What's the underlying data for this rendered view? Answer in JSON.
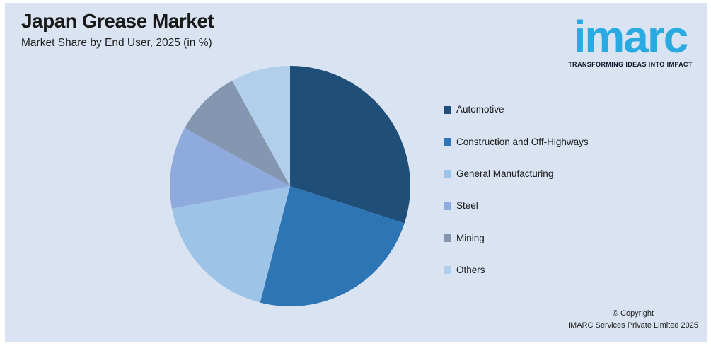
{
  "header": {
    "title": "Japan Grease Market",
    "subtitle": "Market Share by End User, 2025 (in %)"
  },
  "logo": {
    "text": "imarc",
    "tagline": "TRANSFORMING IDEAS INTO IMPACT",
    "brand_color": "#29ABE2"
  },
  "footer": {
    "copyright_line1": "© Copyright",
    "copyright_line2": "IMARC Services Private Limited 2025"
  },
  "colors": {
    "background": "#DAE3F2",
    "frame": "#FFFFFF",
    "text": "#1A1A1A"
  },
  "chart_data": {
    "type": "pie",
    "title": "Japan Grease Market",
    "subtitle": "Market Share by End User, 2025 (in %)",
    "unit": "%",
    "start_angle_deg": 0,
    "direction": "clockwise",
    "legend_position": "right",
    "slices": [
      {
        "label": "Automotive",
        "value": 30,
        "color": "#1F4E79"
      },
      {
        "label": "Construction and Off-Highways",
        "value": 24,
        "color": "#2E75B6"
      },
      {
        "label": "General Manufacturing",
        "value": 18,
        "color": "#9DC3E6"
      },
      {
        "label": "Steel",
        "value": 11,
        "color": "#8FAADC"
      },
      {
        "label": "Mining",
        "value": 9,
        "color": "#8496B0"
      },
      {
        "label": "Others",
        "value": 8,
        "color": "#B1CFEA"
      }
    ]
  }
}
